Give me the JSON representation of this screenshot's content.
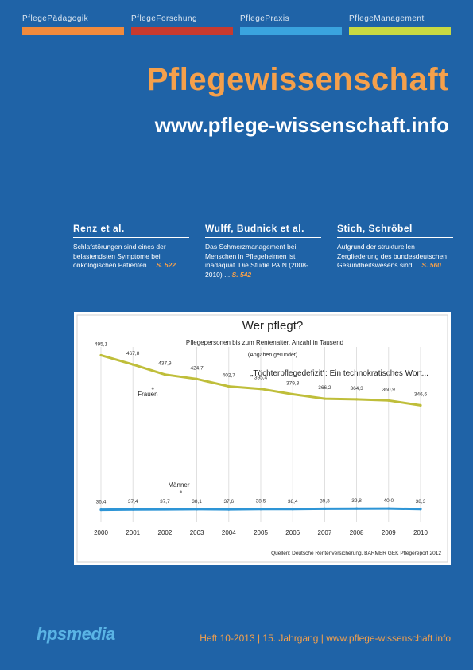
{
  "nav": {
    "items": [
      {
        "label": "PflegePädagogik",
        "color": "#f08a3c"
      },
      {
        "label": "PflegeForschung",
        "color": "#c73a2f"
      },
      {
        "label": "PflegePraxis",
        "color": "#3aa3de"
      },
      {
        "label": "PflegeManagement",
        "color": "#c8d942"
      }
    ]
  },
  "header": {
    "title": "Pflegewissenschaft",
    "url": "www.pflege-wissenschaft.info"
  },
  "articles": [
    {
      "author": "Renz et al.",
      "text": "Schlafstörungen sind eines der belastendsten Symptome bei onkologischen Patienten ...",
      "page": "S. 522"
    },
    {
      "author": "Wulff, Budnick et al.",
      "text": "Das Schmerzmanagement bei Menschen in Pflegeheimen ist inadäquat. Die Studie PAIN (2008-2010) ...",
      "page": "S. 542"
    },
    {
      "author": "Stich, Schröbel",
      "text": "Aufgrund der strukturellen Zergliederung des bundesdeutschen Gesundheitswesens sind ...",
      "page": "S. 560"
    }
  ],
  "chart_data": {
    "type": "line",
    "title": "Wer pflegt?",
    "subtitle": "Pflegepersonen bis zum Rentenalter, Anzahl in Tausend",
    "note": "(Angaben gerundet)",
    "annotation": "„Töchterpflegedefizit“: Ein technokratisches Wort...",
    "source": "Quellen: Deutsche Rentenversicherung, BARMER GEK Pflegereport 2012",
    "x": [
      "2000",
      "2001",
      "2002",
      "2003",
      "2004",
      "2005",
      "2006",
      "2007",
      "2008",
      "2009",
      "2010"
    ],
    "series": [
      {
        "name": "Frauen",
        "color": "#bfbe3a",
        "labels": [
          "495,1",
          "467,8",
          "437,9",
          "424,7",
          "402,7",
          "395,4",
          "379,3",
          "366,2",
          "364,3",
          "360,9",
          "346,6"
        ],
        "values": [
          495.1,
          467.8,
          437.9,
          424.7,
          402.7,
          395.4,
          379.3,
          366.2,
          364.3,
          360.9,
          346.6
        ]
      },
      {
        "name": "Männer",
        "color": "#2e95d6",
        "labels": [
          "36,4",
          "37,4",
          "37,7",
          "38,1",
          "37,6",
          "38,5",
          "38,4",
          "39,3",
          "39,8",
          "40,0",
          "38,3"
        ],
        "values": [
          36.4,
          37.4,
          37.7,
          38.1,
          37.6,
          38.5,
          38.4,
          39.3,
          39.8,
          40.0,
          38.3
        ]
      }
    ],
    "ylim": [
      0,
      520
    ],
    "grid": true
  },
  "footer": {
    "logo": "hpsmedia",
    "text": "Heft 10-2013 | 15. Jahrgang | www.pflege-wissenschaft.info"
  }
}
